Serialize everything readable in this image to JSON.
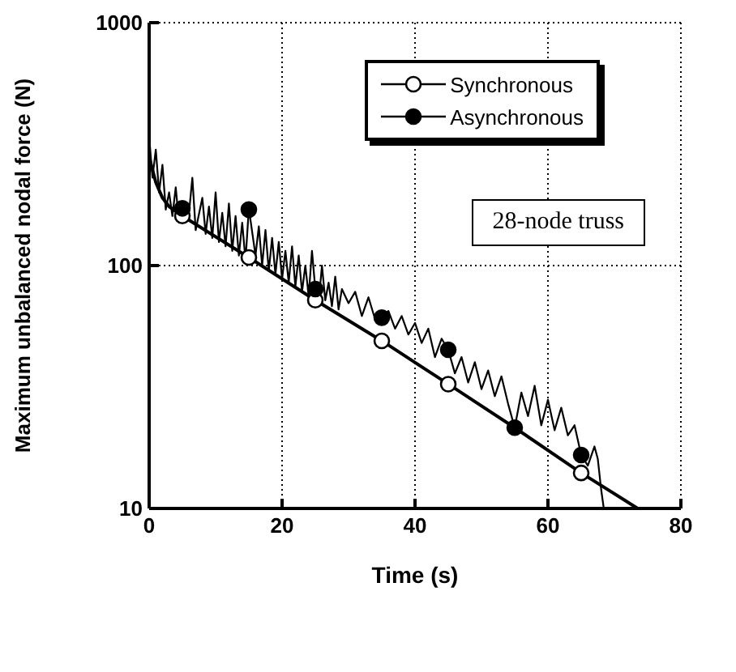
{
  "chart_data": {
    "type": "line",
    "xlabel": "Time   (s)",
    "ylabel": "Maximum  unbalanced  nodal  force   (N)",
    "log": "y",
    "grid": true,
    "legend": "top right",
    "xlim": [
      0,
      80
    ],
    "xticks": [
      0,
      20,
      40,
      60,
      80
    ],
    "ylim": [
      10,
      1000
    ],
    "yticks": [
      10,
      100,
      1000
    ],
    "annotations": [
      "28-node truss"
    ],
    "series": [
      {
        "name": "Synchronous",
        "color": "#000000",
        "marker": "none",
        "x": [
          0,
          1,
          2,
          3,
          5,
          15,
          25,
          35,
          45,
          55,
          65,
          73.5
        ],
        "values": [
          280,
          220,
          190,
          175,
          160,
          108,
          72,
          49,
          32.5,
          21.5,
          14,
          10
        ]
      },
      {
        "type": "scatter",
        "color": "#ffffff",
        "marker": "circle",
        "x": [
          5,
          15,
          25,
          35,
          45,
          65
        ],
        "values": [
          160,
          108,
          72,
          49,
          32.5,
          14
        ]
      },
      {
        "name": "Asynchronous",
        "color": "#000000",
        "marker": "none",
        "x": [
          0,
          0.5,
          1,
          1.5,
          2,
          2.5,
          3,
          3.5,
          4,
          4.5,
          5,
          6,
          6.5,
          7,
          8,
          8.5,
          9,
          9.5,
          10,
          10.5,
          11,
          11.5,
          12,
          12.5,
          13,
          13.5,
          14,
          14.5,
          15,
          16,
          16.5,
          17,
          17.5,
          18,
          18.5,
          19,
          19.5,
          20,
          20.5,
          21,
          21.5,
          22,
          22.5,
          23,
          23.5,
          24,
          24.5,
          25,
          25.5,
          26,
          26.5,
          27,
          27.5,
          28,
          28.5,
          29,
          30,
          31,
          32,
          33,
          34,
          35,
          36,
          37,
          38,
          39,
          40,
          41,
          42,
          43,
          44,
          45,
          46,
          47,
          48,
          49,
          50,
          51,
          52,
          53,
          54,
          55,
          56,
          57,
          58,
          59,
          60,
          61,
          62,
          63,
          64,
          65,
          66,
          67,
          67.5,
          68,
          68.4
        ],
        "values": [
          340,
          230,
          300,
          200,
          260,
          170,
          200,
          160,
          210,
          150,
          172,
          165,
          230,
          140,
          190,
          135,
          175,
          130,
          200,
          125,
          165,
          120,
          180,
          115,
          160,
          110,
          150,
          105,
          172,
          110,
          145,
          100,
          140,
          95,
          130,
          92,
          125,
          88,
          115,
          85,
          120,
          82,
          110,
          78,
          100,
          75,
          115,
          80,
          70,
          100,
          72,
          85,
          68,
          90,
          66,
          80,
          70,
          78,
          62,
          74,
          60,
          61,
          65,
          55,
          62,
          52,
          58,
          48,
          55,
          42,
          50,
          45,
          36,
          42,
          33,
          40,
          31,
          37,
          29,
          35,
          27,
          21.5,
          30,
          24,
          32,
          22,
          28,
          21,
          26,
          20,
          22,
          16.6,
          15,
          18,
          16,
          12,
          10
        ]
      },
      {
        "type": "scatter",
        "color": "#000000",
        "marker": "circle",
        "x": [
          5,
          15,
          25,
          35,
          45,
          55,
          65
        ],
        "values": [
          172,
          170,
          80,
          61,
          45,
          21.5,
          16.6
        ]
      }
    ]
  }
}
